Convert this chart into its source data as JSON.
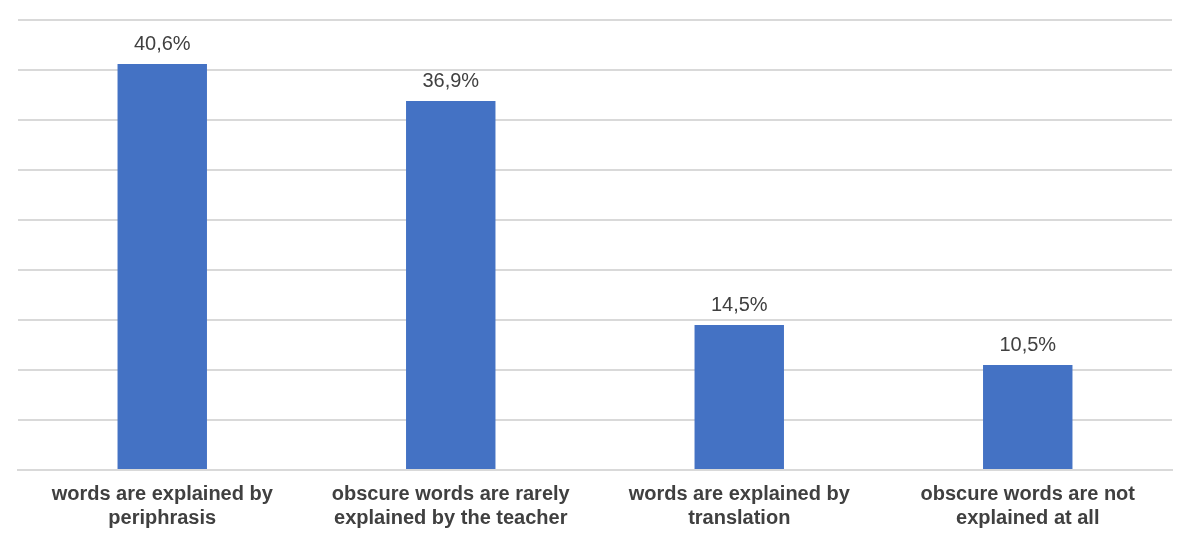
{
  "chart_data": {
    "type": "bar",
    "categories": [
      "words are explained by periphrasis",
      "obscure words are rarely explained by the teacher",
      "words are explained by translation",
      "obscure words are not explained at all"
    ],
    "values": [
      40.6,
      36.9,
      14.5,
      10.5
    ],
    "value_labels": [
      "40,6%",
      "36,9%",
      "14,5%",
      "10,5%"
    ],
    "color": "#4472c4",
    "ylim": [
      0,
      45
    ],
    "yticks": [
      {
        "value": 0,
        "label": null
      },
      {
        "value": 5,
        "label": null
      },
      {
        "value": 10,
        "label": null
      },
      {
        "value": 15,
        "label": null
      },
      {
        "value": 20,
        "label": null
      },
      {
        "value": 25,
        "label": null
      },
      {
        "value": 30,
        "label": null
      },
      {
        "value": 35,
        "label": null
      },
      {
        "value": 40,
        "label": null
      },
      {
        "value": 45,
        "label": null
      }
    ],
    "grid": "y",
    "tick_labels": "x",
    "legend": false
  }
}
